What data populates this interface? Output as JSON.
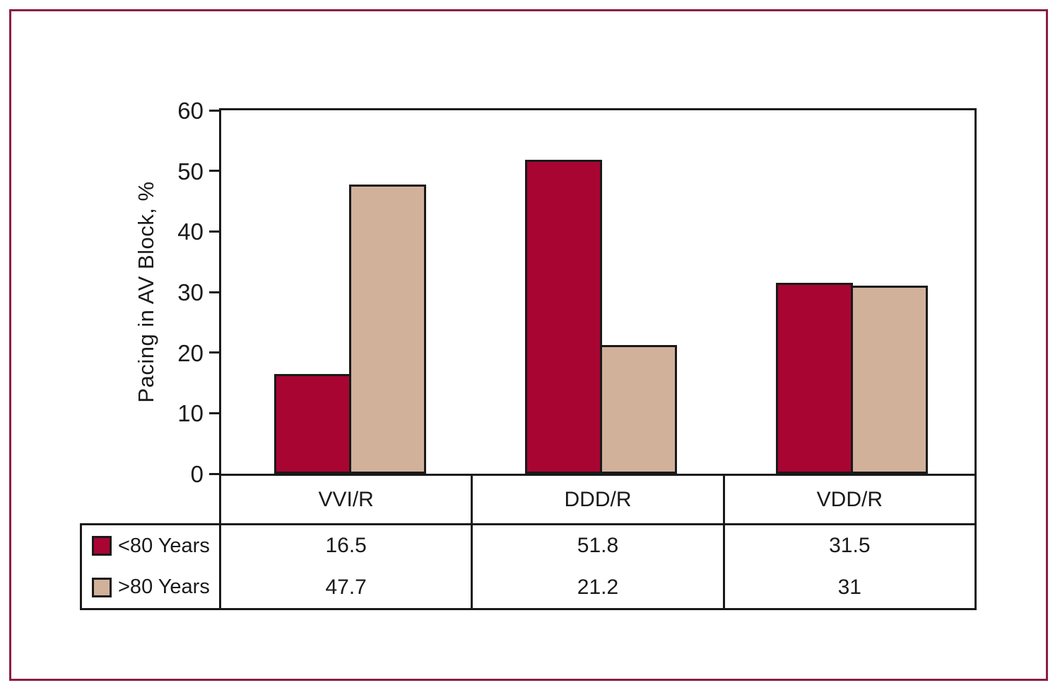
{
  "frame": {
    "border_color": "#8C1F41"
  },
  "chart_data": {
    "type": "bar",
    "title": "",
    "xlabel": "",
    "ylabel": "Pacing in AV Block, %",
    "ylim": [
      0,
      60
    ],
    "yticks": [
      0,
      10,
      20,
      30,
      40,
      50,
      60
    ],
    "grid": false,
    "legend_position": "table-left",
    "categories": [
      "VVI/R",
      "DDD/R",
      "VDD/R"
    ],
    "series": [
      {
        "name": "<80 Years",
        "color": "#A90533",
        "values": [
          16.5,
          51.8,
          31.5
        ],
        "display_values": [
          "16.5",
          "51.8",
          "31.5"
        ]
      },
      {
        "name": ">80 Years",
        "color": "#D2B19B",
        "values": [
          47.7,
          21.2,
          31
        ],
        "display_values": [
          "47.7",
          "21.2",
          "31"
        ]
      }
    ]
  }
}
